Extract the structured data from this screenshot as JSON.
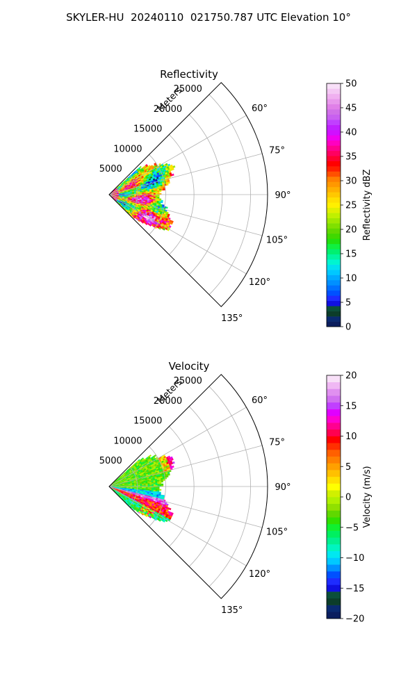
{
  "figure": {
    "title": "SKYLER-HU  20240110  021750.787 UTC Elevation 10°"
  },
  "colors": {
    "axis": "#000000",
    "grid": "#b0b0b0",
    "background": "#ffffff"
  },
  "chart_data": [
    {
      "type": "heatmap",
      "projection": "polar-sector",
      "title": "Reflectivity",
      "radial_label": "Meters",
      "r_ticks": [
        5000,
        10000,
        15000,
        20000,
        25000
      ],
      "r_tick_labels": [
        "5000",
        "10000",
        "15000",
        "20000",
        "25000"
      ],
      "r_max_m": 28000,
      "theta_ticks_deg": [
        60,
        75,
        90,
        105,
        120,
        135
      ],
      "theta_tick_labels": [
        "60°",
        "75°",
        "90°",
        "105°",
        "120°",
        "135°"
      ],
      "theta_range_deg": [
        45,
        135
      ],
      "grid": true,
      "data_extent": {
        "azimuth_deg": [
          48,
          135
        ],
        "range_m": [
          0,
          13000
        ]
      },
      "colorbar": {
        "label": "Reflectivity dBZ",
        "range": [
          0,
          50
        ],
        "ticks": [
          0,
          5,
          10,
          15,
          20,
          25,
          30,
          35,
          40,
          45,
          50
        ],
        "tick_labels": [
          "0",
          "5",
          "10",
          "15",
          "20",
          "25",
          "30",
          "35",
          "40",
          "45",
          "50"
        ],
        "colors": [
          "#0b1e5e",
          "#0a2a70",
          "#0c3d2a",
          "#0b4f3a",
          "#1010e0",
          "#1e2cff",
          "#0050ff",
          "#0070ff",
          "#0090ff",
          "#00aaff",
          "#00c8ff",
          "#00e0f0",
          "#00f5d0",
          "#00f5a0",
          "#00f070",
          "#10f040",
          "#20e010",
          "#40d800",
          "#60d800",
          "#80e000",
          "#a0e800",
          "#c0f000",
          "#e0f000",
          "#fff000",
          "#ffe000",
          "#ffc800",
          "#ffb000",
          "#ff9800",
          "#ff8000",
          "#ff5000",
          "#ff2000",
          "#ff0000",
          "#ff0030",
          "#ff0060",
          "#ff0090",
          "#ff00c0",
          "#f000f0",
          "#d010ff",
          "#c020ff",
          "#c040ff",
          "#c860f0",
          "#d070e8",
          "#e080e8",
          "#e898ec",
          "#f0b0f0",
          "#f4c8f4",
          "#f8e0f8"
        ]
      }
    },
    {
      "type": "heatmap",
      "projection": "polar-sector",
      "title": "Velocity",
      "radial_label": "Meters",
      "r_ticks": [
        5000,
        10000,
        15000,
        20000,
        25000
      ],
      "r_tick_labels": [
        "5000",
        "10000",
        "15000",
        "20000",
        "25000"
      ],
      "r_max_m": 28000,
      "theta_ticks_deg": [
        60,
        75,
        90,
        105,
        120,
        135
      ],
      "theta_tick_labels": [
        "60°",
        "75°",
        "90°",
        "105°",
        "120°",
        "135°"
      ],
      "theta_range_deg": [
        45,
        135
      ],
      "grid": true,
      "data_extent": {
        "azimuth_deg": [
          48,
          135
        ],
        "range_m": [
          0,
          13000
        ]
      },
      "colorbar": {
        "label": "Velocity (m/s)",
        "range": [
          -20,
          20
        ],
        "ticks": [
          -20,
          -15,
          -10,
          -5,
          0,
          5,
          10,
          15,
          20
        ],
        "tick_labels": [
          "−20",
          "−15",
          "−10",
          "−5",
          "0",
          "5",
          "10",
          "15",
          "20"
        ],
        "colors": [
          "#0b1e5e",
          "#0a2a70",
          "#0c3d2a",
          "#0b4f3a",
          "#1010e0",
          "#1e2cff",
          "#0050ff",
          "#0090ff",
          "#00c8ff",
          "#00e8f0",
          "#00f5c0",
          "#00f090",
          "#00f060",
          "#10f030",
          "#30e000",
          "#60d800",
          "#90e000",
          "#b0f000",
          "#d0f000",
          "#ffff00",
          "#ffe000",
          "#ffc000",
          "#ffa000",
          "#ff8000",
          "#ff6000",
          "#ff3000",
          "#ff0000",
          "#ff0050",
          "#ff0090",
          "#ff00d0",
          "#e000ff",
          "#c040ff",
          "#d070f0",
          "#e090f0",
          "#f0b8f4",
          "#f8e0f8"
        ]
      }
    }
  ]
}
